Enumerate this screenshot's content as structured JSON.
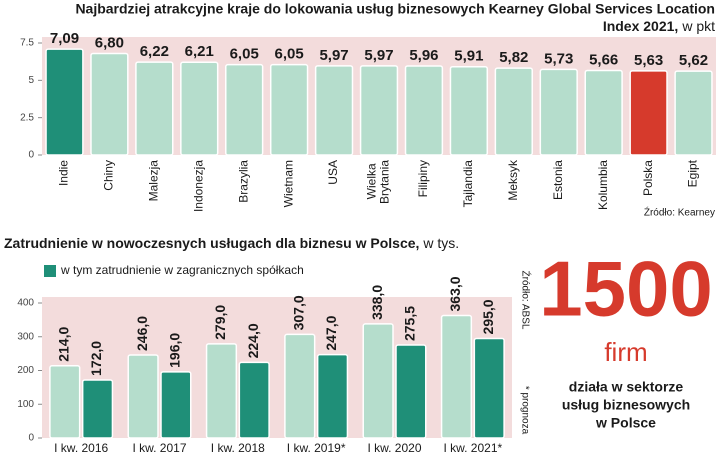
{
  "chart_data": [
    {
      "type": "bar",
      "title": [
        "Najbardziej atrakcyjne kraje do lokowania usług biznesowych Kearney Global Services Location",
        "Index 2021,"
      ],
      "subtitle": "w pkt",
      "categories": [
        "Indie",
        "Chiny",
        "Malezja",
        "Indonezja",
        "Brazylia",
        "Wietnam",
        "USA",
        "Wielka Brytania",
        "Filipiny",
        "Tajlandia",
        "Meksyk",
        "Estonia",
        "Kolumbia",
        "Polska",
        "Egipt"
      ],
      "values": [
        7.09,
        6.8,
        6.22,
        6.21,
        6.05,
        6.05,
        5.97,
        5.97,
        5.96,
        5.91,
        5.82,
        5.73,
        5.66,
        5.63,
        5.62
      ],
      "value_labels": [
        "7,09",
        "6,80",
        "6,22",
        "6,21",
        "6,05",
        "6,05",
        "5,97",
        "5,97",
        "5,96",
        "5,91",
        "5,82",
        "5,73",
        "5,66",
        "5,63",
        "5,62"
      ],
      "colors": [
        "#1f8f78",
        "#b5ddcc",
        "#b5ddcc",
        "#b5ddcc",
        "#b5ddcc",
        "#b5ddcc",
        "#b5ddcc",
        "#b5ddcc",
        "#b5ddcc",
        "#b5ddcc",
        "#b5ddcc",
        "#b5ddcc",
        "#b5ddcc",
        "#d63a2c",
        "#b5ddcc"
      ],
      "ylim": [
        0,
        7.5
      ],
      "yticks": [
        0,
        2.5,
        5,
        7.5
      ],
      "source": "Źródło: Kearney"
    },
    {
      "type": "grouped_bar",
      "title": "Zatrudnienie w nowoczesnych usługach dla biznesu w Polsce,",
      "subtitle": "w tys.",
      "categories": [
        "I kw. 2016",
        "I kw. 2017",
        "I kw. 2018",
        "I kw. 2019*",
        "I kw. 2020",
        "I kw. 2021*"
      ],
      "series": [
        {
          "color": "#b5ddcc",
          "values": [
            214,
            246,
            279,
            307,
            338,
            363
          ],
          "value_labels": [
            "214,0",
            "246,0",
            "279,0",
            "307,0",
            "338,0",
            "363,0"
          ]
        },
        {
          "name": "w tym zatrudnienie w zagranicznych spółkach",
          "color": "#1f8f78",
          "values": [
            172,
            196,
            224,
            247,
            275.5,
            295
          ],
          "value_labels": [
            "172,0",
            "196,0",
            "224,0",
            "247,0",
            "275,5",
            "295,0"
          ]
        }
      ],
      "ylim": [
        0,
        400
      ],
      "yticks": [
        0,
        100,
        200,
        300,
        400
      ],
      "source": "Źródło: ABSL",
      "note": "* prognoza"
    }
  ],
  "stat": {
    "number": "1500",
    "unit": "firm",
    "lines": [
      "działa w sektorze",
      "usług biznesowych",
      "w Polsce"
    ]
  }
}
